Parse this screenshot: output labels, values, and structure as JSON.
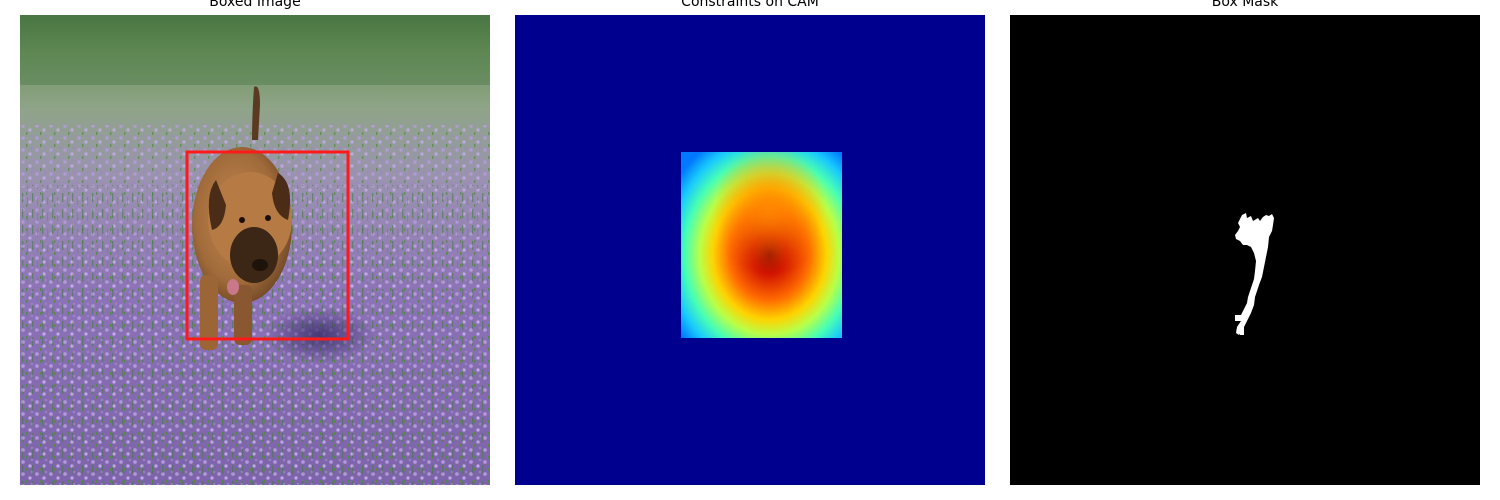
{
  "panels": [
    {
      "title": "Boxed Image",
      "content": "photo-with-box",
      "box_color": "#ff1a1a"
    },
    {
      "title": "Constraints on CAM",
      "content": "heatmap",
      "colormap": "jet",
      "background_color": "#00008f"
    },
    {
      "title": "Box Mask",
      "content": "binary-mask",
      "background_color": "#000000",
      "foreground_color": "#ffffff"
    }
  ]
}
